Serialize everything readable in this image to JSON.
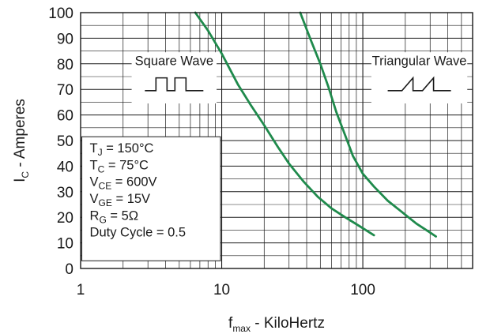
{
  "chart_data": {
    "type": "line",
    "xscale": "log",
    "xlim": [
      1,
      600
    ],
    "ylim": [
      0,
      100
    ],
    "x_ticks": [
      {
        "value": 1,
        "label": "1"
      },
      {
        "value": 10,
        "label": "10"
      },
      {
        "value": 100,
        "label": "100"
      }
    ],
    "y_ticks": [
      {
        "value": 0,
        "label": "0"
      },
      {
        "value": 10,
        "label": "10"
      },
      {
        "value": 20,
        "label": "20"
      },
      {
        "value": 30,
        "label": "30"
      },
      {
        "value": 40,
        "label": "40"
      },
      {
        "value": 50,
        "label": "50"
      },
      {
        "value": 60,
        "label": "60"
      },
      {
        "value": 70,
        "label": "70"
      },
      {
        "value": 80,
        "label": "80"
      },
      {
        "value": 90,
        "label": "90"
      },
      {
        "value": 100,
        "label": "100"
      }
    ],
    "xlabel": {
      "main": "f",
      "sub": "max",
      "rest": " - KiloHertz"
    },
    "ylabel": {
      "main": "I",
      "sub": "C",
      "rest": " - Amperes"
    },
    "grid": true,
    "line_color": "#1f8a4c",
    "series": [
      {
        "name": "Square Wave",
        "points": [
          [
            6.5,
            100
          ],
          [
            8,
            93
          ],
          [
            10,
            84
          ],
          [
            13,
            72
          ],
          [
            16,
            64
          ],
          [
            20,
            56
          ],
          [
            25,
            47.5
          ],
          [
            30,
            41
          ],
          [
            38,
            34
          ],
          [
            48,
            28
          ],
          [
            60,
            23.5
          ],
          [
            75,
            20
          ],
          [
            95,
            16.5
          ],
          [
            120,
            13
          ]
        ]
      },
      {
        "name": "Triangular Wave",
        "points": [
          [
            36,
            100
          ],
          [
            43,
            89
          ],
          [
            50,
            80
          ],
          [
            57,
            71
          ],
          [
            65,
            61
          ],
          [
            75,
            52
          ],
          [
            85,
            44
          ],
          [
            100,
            37
          ],
          [
            120,
            32
          ],
          [
            150,
            26.5
          ],
          [
            190,
            22
          ],
          [
            240,
            17.5
          ],
          [
            300,
            14
          ],
          [
            330,
            12.5
          ]
        ]
      }
    ],
    "legend": [
      {
        "label": "Square Wave",
        "waveform": "square"
      },
      {
        "label": "Triangular Wave",
        "waveform": "triangular"
      }
    ],
    "conditions": [
      {
        "main": "T",
        "sub": "J",
        "rest": " = 150°C"
      },
      {
        "main": "T",
        "sub": "C",
        "rest": " = 75°C"
      },
      {
        "main": "V",
        "sub": "CE",
        "rest": " = 600V"
      },
      {
        "main": "V",
        "sub": "GE",
        "rest": " = 15V"
      },
      {
        "main": "R",
        "sub": "G",
        "rest": " = 5Ω"
      },
      {
        "main": "Duty Cycle = 0.5",
        "sub": "",
        "rest": ""
      }
    ]
  }
}
